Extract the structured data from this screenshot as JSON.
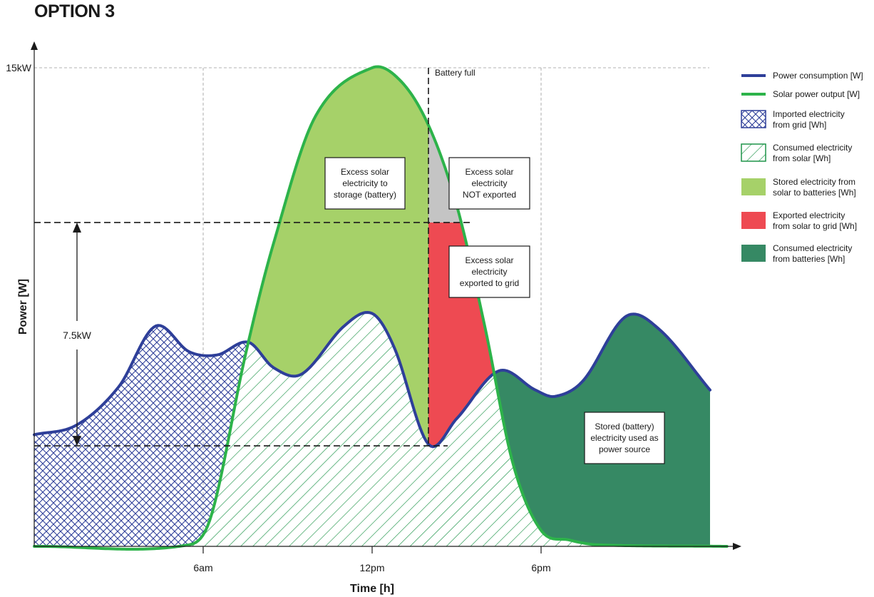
{
  "page": {
    "title": "OPTION 3"
  },
  "chart_data": {
    "type": "area",
    "xlabel": "Time [h]",
    "ylabel": "Power [W]",
    "xlim": [
      0,
      24
    ],
    "ylim": [
      0,
      15
    ],
    "x_ticks": [
      {
        "value": 6,
        "label": "6am"
      },
      {
        "value": 12,
        "label": "12pm"
      },
      {
        "value": 18,
        "label": "6pm"
      }
    ],
    "y_ticks": [
      {
        "value": 15,
        "label": "15kW"
      }
    ],
    "grid": "dashed",
    "legend_position": "right",
    "colors": {
      "consumption": "#2e3f99",
      "solar": "#2db34a",
      "stored": "#a6d169",
      "exported": "#ee4a52",
      "not_exported": "#c4c4c4",
      "battery_use": "#368964",
      "hatch_grid": "#2e3f99",
      "hatch_solar": "#1d9448"
    },
    "series": [
      {
        "name": "Power consumption [W]",
        "x": [
          0,
          1.5,
          3,
          4.3,
          5.5,
          6.5,
          7.6,
          8.5,
          9.5,
          11,
          12,
          12.8,
          14,
          15,
          16.5,
          17.8,
          18.5,
          19.5,
          21,
          22.2,
          24
        ],
        "values": [
          3.5,
          3.8,
          5.0,
          6.9,
          6.1,
          6.0,
          6.4,
          5.6,
          5.4,
          6.9,
          7.3,
          6.2,
          3.2,
          4.0,
          5.5,
          4.9,
          4.7,
          5.2,
          7.2,
          6.8,
          4.9
        ]
      },
      {
        "name": "Solar power output [W]",
        "x": [
          0,
          5.5,
          6.3,
          7.5,
          8.5,
          10,
          12,
          13,
          14,
          15,
          16,
          17,
          18,
          19,
          20,
          24.5
        ],
        "values": [
          0,
          0.05,
          1.0,
          6.0,
          9.5,
          13.5,
          15,
          14.6,
          13.2,
          10.7,
          6.9,
          2.6,
          0.5,
          0.2,
          0.05,
          0
        ]
      }
    ],
    "annotations": [
      {
        "label": "7.5kW",
        "from": 3.15,
        "to": 10.15
      },
      {
        "label": "Battery full",
        "x": 14
      }
    ],
    "callouts": [
      {
        "lines": [
          "Excess solar",
          "electricity to",
          "storage (battery)"
        ]
      },
      {
        "lines": [
          "Excess solar",
          "electricity",
          "NOT exported"
        ]
      },
      {
        "lines": [
          "Excess solar",
          "electricity",
          "exported to grid"
        ]
      },
      {
        "lines": [
          "Stored (battery)",
          "electricity used as",
          "power source"
        ]
      }
    ],
    "legend": [
      {
        "swatch": "line-blue",
        "lines": [
          "Power consumption [W]"
        ]
      },
      {
        "swatch": "line-green",
        "lines": [
          "Solar power output [W]"
        ]
      },
      {
        "swatch": "hatch-grid",
        "lines": [
          "Imported electricity",
          "from grid [Wh]"
        ]
      },
      {
        "swatch": "hatch-solar",
        "lines": [
          "Consumed electricity",
          "from solar [Wh]"
        ]
      },
      {
        "swatch": "stored",
        "lines": [
          "Stored electricity from",
          "solar to batteries [Wh]"
        ]
      },
      {
        "swatch": "exported",
        "lines": [
          "Exported electricity",
          "from solar to grid [Wh]"
        ]
      },
      {
        "swatch": "battery",
        "lines": [
          "Consumed electricity",
          "from batteries [Wh]"
        ]
      }
    ]
  }
}
